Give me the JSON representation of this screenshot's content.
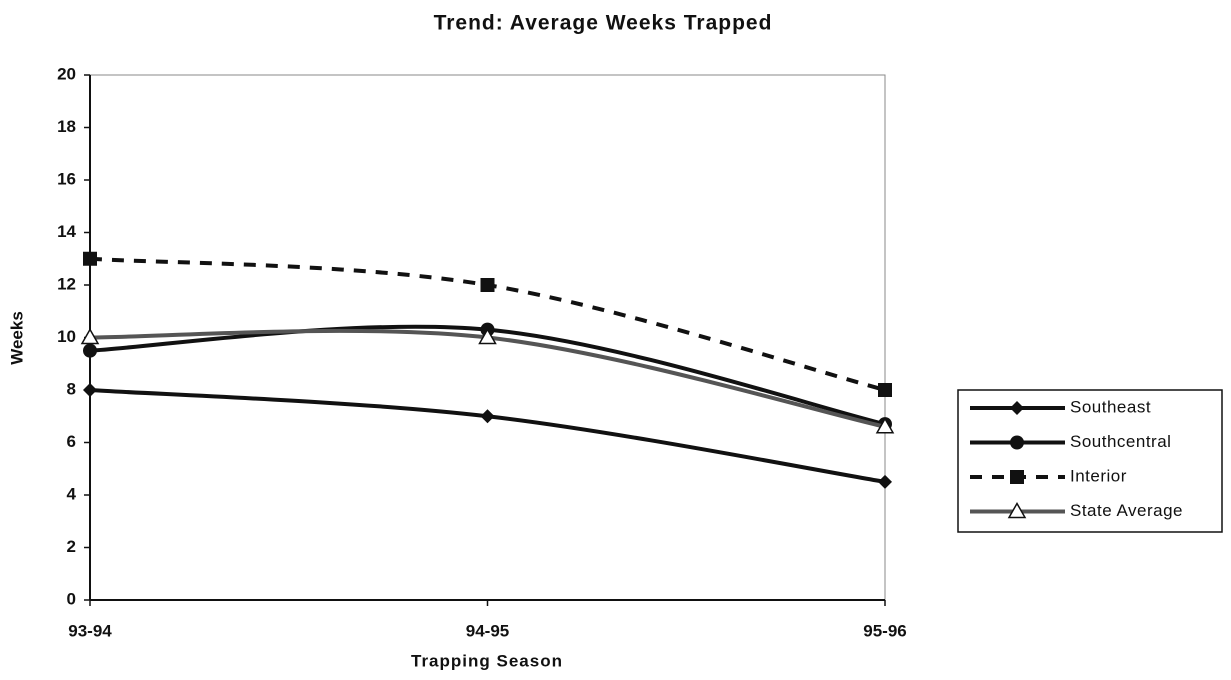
{
  "chart_data": {
    "type": "line",
    "title": "Trend:  Average Weeks Trapped",
    "x_label": "Trapping Season",
    "y_label": "Weeks",
    "categories": [
      "93-94",
      "94-95",
      "95-96"
    ],
    "series": [
      {
        "name": "Southeast",
        "color": "#111111",
        "marker": "diamond",
        "line_style": "solid",
        "values": [
          8,
          7,
          4.5
        ]
      },
      {
        "name": "Southcentral",
        "color": "#111111",
        "marker": "circle",
        "line_style": "solid",
        "values": [
          9.5,
          10.3,
          6.7
        ]
      },
      {
        "name": "Interior",
        "color": "#111111",
        "marker": "square",
        "line_style": "dashed",
        "values": [
          13,
          12,
          8
        ]
      },
      {
        "name": "State Average",
        "color": "#555555",
        "marker": "triangle",
        "line_style": "solid",
        "values": [
          10,
          10,
          6.6
        ]
      }
    ],
    "ylim": [
      0,
      20
    ],
    "yticks": [
      0,
      2,
      4,
      6,
      8,
      10,
      12,
      14,
      16,
      18,
      20
    ],
    "grid": false,
    "smooth": true,
    "legend": "right"
  }
}
